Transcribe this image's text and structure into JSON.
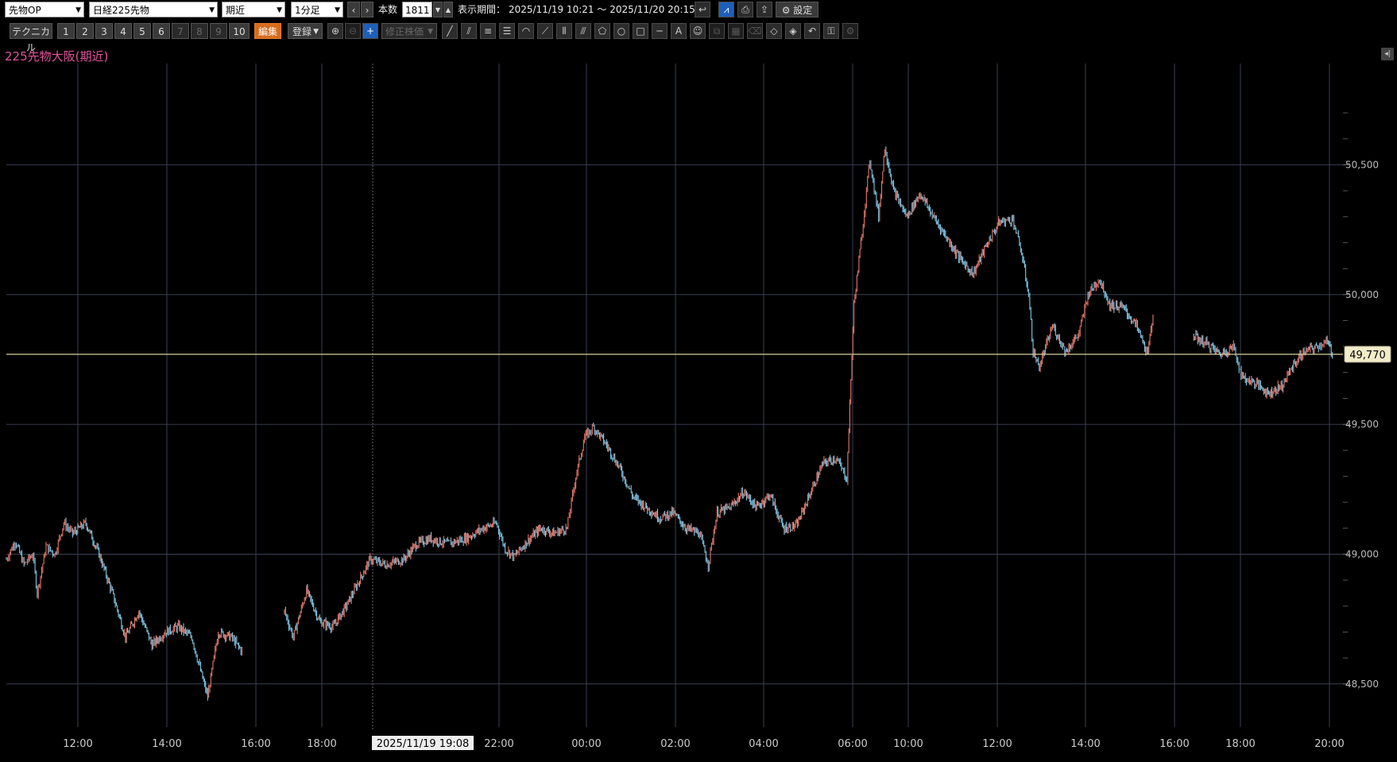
{
  "toolbar1": {
    "product_select": "先物OP",
    "instrument_select": "日経225先物",
    "contract_select": "期近",
    "interval_select": "1分足",
    "prev_label": "‹",
    "next_label": "›",
    "bars_label": "本数",
    "bars_value": "1811",
    "period_label": "表示期間：",
    "period_value": "2025/11/19 10:21 ～ 2025/11/20 20:15",
    "settings_label": "設定"
  },
  "toolbar2": {
    "technical_label": "テクニカル",
    "preset_buttons": [
      "1",
      "2",
      "3",
      "4",
      "5",
      "6",
      "7",
      "8",
      "9",
      "10"
    ],
    "edit_label": "編集",
    "register_label": "登録",
    "adjusted_price_label": "修正株価"
  },
  "chart": {
    "title": "225先物大阪(期近)",
    "current_price_label": "49,770",
    "crosshair_time_label": "2025/11/19 19:08",
    "up_color": "#e8786a",
    "down_color": "#7ec8e8",
    "price_line_color": "#d8cfa0"
  },
  "chart_data": {
    "type": "candlestick",
    "y_ticks": [
      "50,500",
      "50,000",
      "49,500",
      "49,000",
      "48,500"
    ],
    "y_tick_values": [
      50500,
      50000,
      49500,
      49000,
      48500
    ],
    "x_ticks": [
      "12:00",
      "14:00",
      "16:00",
      "18:00",
      "22:00",
      "00:00",
      "02:00",
      "04:00",
      "06:00",
      "10:00",
      "12:00",
      "14:00",
      "16:00",
      "18:00",
      "20:00"
    ],
    "ylim": [
      48380,
      50890
    ],
    "current_price": 49770,
    "series": [
      {
        "t": 0,
        "v": 48980
      },
      {
        "t": 10,
        "v": 49050
      },
      {
        "t": 20,
        "v": 48960
      },
      {
        "t": 30,
        "v": 49000
      },
      {
        "t": 35,
        "v": 48850
      },
      {
        "t": 45,
        "v": 49030
      },
      {
        "t": 55,
        "v": 49000
      },
      {
        "t": 65,
        "v": 49120
      },
      {
        "t": 75,
        "v": 49080
      },
      {
        "t": 90,
        "v": 49120
      },
      {
        "t": 105,
        "v": 49000
      },
      {
        "t": 120,
        "v": 48850
      },
      {
        "t": 135,
        "v": 48680
      },
      {
        "t": 150,
        "v": 48780
      },
      {
        "t": 165,
        "v": 48650
      },
      {
        "t": 180,
        "v": 48700
      },
      {
        "t": 195,
        "v": 48720
      },
      {
        "t": 210,
        "v": 48680
      },
      {
        "t": 220,
        "v": 48550
      },
      {
        "t": 228,
        "v": 48450
      },
      {
        "t": 240,
        "v": 48700
      },
      {
        "t": 255,
        "v": 48680
      },
      {
        "t": 268,
        "v": 48620
      },
      {
        "t": 315,
        "v": 48780
      },
      {
        "t": 325,
        "v": 48680
      },
      {
        "t": 340,
        "v": 48860
      },
      {
        "t": 355,
        "v": 48740
      },
      {
        "t": 370,
        "v": 48720
      },
      {
        "t": 385,
        "v": 48800
      },
      {
        "t": 400,
        "v": 48900
      },
      {
        "t": 412,
        "v": 48980
      },
      {
        "t": 430,
        "v": 48960
      },
      {
        "t": 450,
        "v": 48980
      },
      {
        "t": 465,
        "v": 49040
      },
      {
        "t": 480,
        "v": 49060
      },
      {
        "t": 500,
        "v": 49040
      },
      {
        "t": 520,
        "v": 49060
      },
      {
        "t": 540,
        "v": 49100
      },
      {
        "t": 555,
        "v": 49120
      },
      {
        "t": 565,
        "v": 49020
      },
      {
        "t": 575,
        "v": 48990
      },
      {
        "t": 590,
        "v": 49050
      },
      {
        "t": 605,
        "v": 49100
      },
      {
        "t": 620,
        "v": 49080
      },
      {
        "t": 635,
        "v": 49100
      },
      {
        "t": 645,
        "v": 49300
      },
      {
        "t": 655,
        "v": 49450
      },
      {
        "t": 665,
        "v": 49490
      },
      {
        "t": 680,
        "v": 49420
      },
      {
        "t": 695,
        "v": 49330
      },
      {
        "t": 710,
        "v": 49220
      },
      {
        "t": 725,
        "v": 49180
      },
      {
        "t": 740,
        "v": 49140
      },
      {
        "t": 755,
        "v": 49160
      },
      {
        "t": 770,
        "v": 49100
      },
      {
        "t": 785,
        "v": 49080
      },
      {
        "t": 795,
        "v": 48960
      },
      {
        "t": 805,
        "v": 49160
      },
      {
        "t": 820,
        "v": 49180
      },
      {
        "t": 835,
        "v": 49240
      },
      {
        "t": 850,
        "v": 49180
      },
      {
        "t": 865,
        "v": 49230
      },
      {
        "t": 880,
        "v": 49100
      },
      {
        "t": 895,
        "v": 49110
      },
      {
        "t": 910,
        "v": 49230
      },
      {
        "t": 925,
        "v": 49350
      },
      {
        "t": 940,
        "v": 49370
      },
      {
        "t": 952,
        "v": 49290
      },
      {
        "t": 960,
        "v": 49960
      },
      {
        "t": 968,
        "v": 50200
      },
      {
        "t": 978,
        "v": 50520
      },
      {
        "t": 988,
        "v": 50300
      },
      {
        "t": 995,
        "v": 50570
      },
      {
        "t": 1005,
        "v": 50400
      },
      {
        "t": 1020,
        "v": 50300
      },
      {
        "t": 1035,
        "v": 50390
      },
      {
        "t": 1050,
        "v": 50300
      },
      {
        "t": 1065,
        "v": 50220
      },
      {
        "t": 1080,
        "v": 50140
      },
      {
        "t": 1095,
        "v": 50080
      },
      {
        "t": 1110,
        "v": 50190
      },
      {
        "t": 1125,
        "v": 50280
      },
      {
        "t": 1140,
        "v": 50290
      },
      {
        "t": 1150,
        "v": 50160
      },
      {
        "t": 1158,
        "v": 50000
      },
      {
        "t": 1163,
        "v": 49780
      },
      {
        "t": 1170,
        "v": 49720
      },
      {
        "t": 1185,
        "v": 49880
      },
      {
        "t": 1200,
        "v": 49780
      },
      {
        "t": 1215,
        "v": 49850
      },
      {
        "t": 1225,
        "v": 50000
      },
      {
        "t": 1238,
        "v": 50060
      },
      {
        "t": 1250,
        "v": 49960
      },
      {
        "t": 1265,
        "v": 49950
      },
      {
        "t": 1280,
        "v": 49880
      },
      {
        "t": 1293,
        "v": 49770
      },
      {
        "t": 1300,
        "v": 49960
      },
      {
        "t": 1345,
        "v": 49840
      },
      {
        "t": 1360,
        "v": 49810
      },
      {
        "t": 1375,
        "v": 49770
      },
      {
        "t": 1390,
        "v": 49800
      },
      {
        "t": 1400,
        "v": 49680
      },
      {
        "t": 1415,
        "v": 49660
      },
      {
        "t": 1430,
        "v": 49620
      },
      {
        "t": 1445,
        "v": 49650
      },
      {
        "t": 1458,
        "v": 49730
      },
      {
        "t": 1470,
        "v": 49780
      },
      {
        "t": 1485,
        "v": 49800
      },
      {
        "t": 1495,
        "v": 49820
      },
      {
        "t": 1503,
        "v": 49770
      }
    ]
  }
}
